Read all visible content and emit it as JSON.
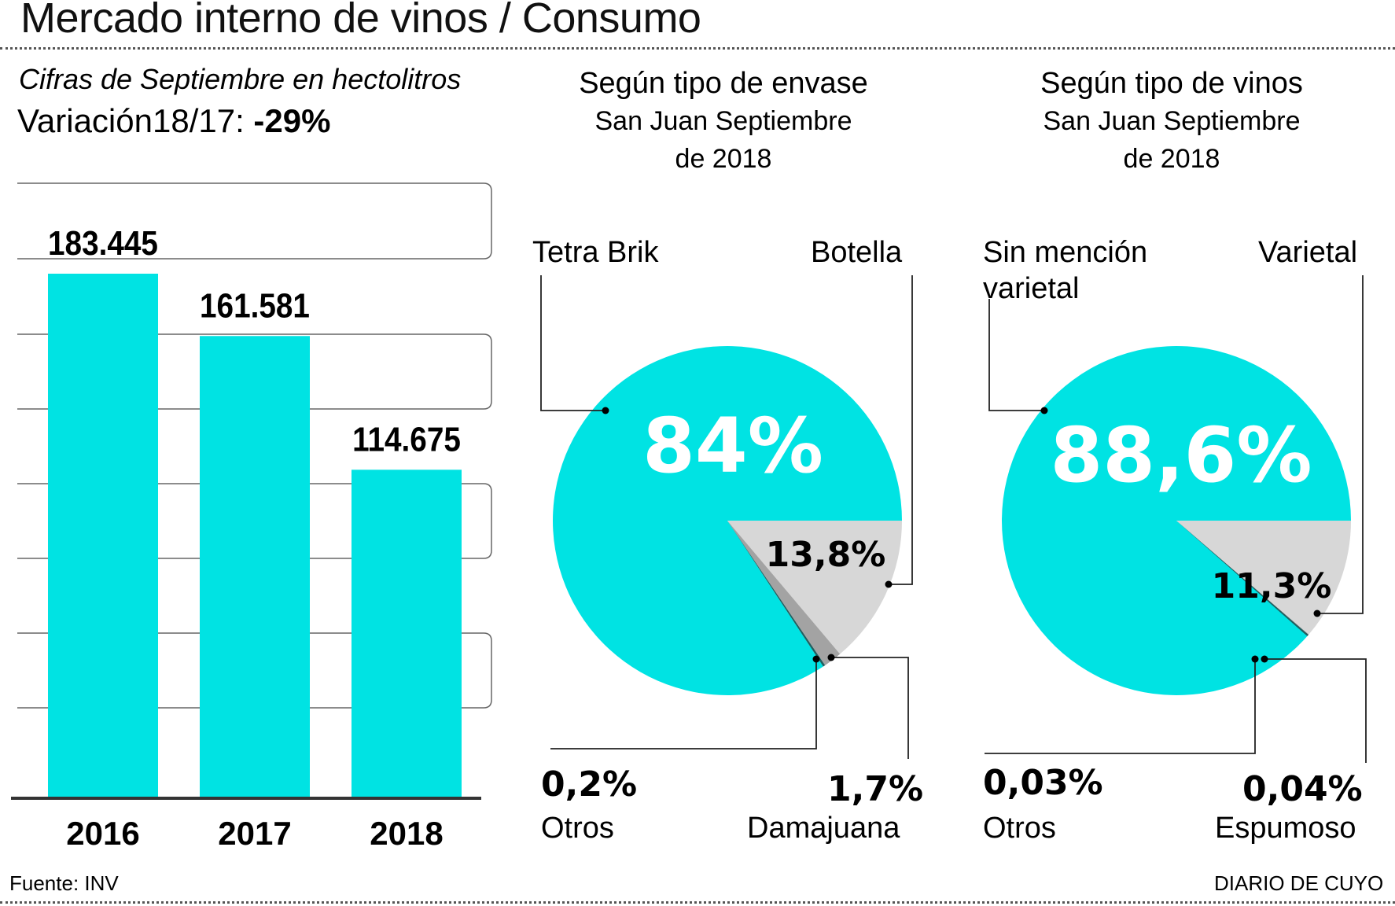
{
  "header": {
    "title": "Mercado interno de vinos / Consumo",
    "subtitle": "Cifras de Septiembre en hectolitros",
    "variation_label": "Variación18/17: ",
    "variation_value": "-29%"
  },
  "colors": {
    "accent": "#00e3e3",
    "slice_light": "#d7d7d7",
    "slice_mid": "#a3a3a3",
    "slice_dark": "#1f5f5f",
    "text": "#000000"
  },
  "chart_data": [
    {
      "type": "bar",
      "title": "Cifras de Septiembre en hectolitros",
      "categories": [
        "2016",
        "2017",
        "2018"
      ],
      "values": [
        183445,
        161581,
        114675
      ],
      "value_labels": [
        "183.445",
        "161.581",
        "114.675"
      ],
      "xlabel": "",
      "ylabel": "hectolitros",
      "ylim": [
        0,
        183445
      ],
      "grid": true
    },
    {
      "type": "pie",
      "title": "Según tipo de envase",
      "subtitle_line1": "San Juan Septiembre",
      "subtitle_line2": "de 2018",
      "slices": [
        {
          "name": "Tetra Brik",
          "value": 84.0,
          "label": "84%"
        },
        {
          "name": "Botella",
          "value": 13.8,
          "label": "13,8%"
        },
        {
          "name": "Damajuana",
          "value": 1.7,
          "label": "1,7%"
        },
        {
          "name": "Otros",
          "value": 0.2,
          "label": "0,2%"
        }
      ]
    },
    {
      "type": "pie",
      "title": "Según tipo de vinos",
      "subtitle_line1": "San Juan Septiembre",
      "subtitle_line2": "de 2018",
      "slices": [
        {
          "name": "Sin mención varietal",
          "name_line1": "Sin mención",
          "name_line2": "varietal",
          "value": 88.6,
          "label": "88,6%"
        },
        {
          "name": "Varietal",
          "value": 11.3,
          "label": "11,3%"
        },
        {
          "name": "Espumoso",
          "value": 0.04,
          "label": "0,04%"
        },
        {
          "name": "Otros",
          "value": 0.03,
          "label": "0,03%"
        }
      ]
    }
  ],
  "footer": {
    "source": "Fuente: INV",
    "publisher": "DIARIO DE CUYO"
  }
}
